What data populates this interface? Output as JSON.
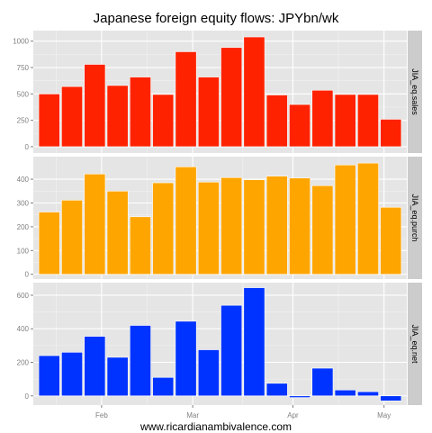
{
  "chart_data": {
    "type": "bar",
    "title": "Japanese foreign equity flows: JPYbn/wk",
    "caption": "www.ricardianambivalence.com",
    "x_tick_labels": [
      "Feb",
      "Mar",
      "Apr",
      "May"
    ],
    "x_tick_positions": [
      3.3,
      7.3,
      11.7,
      15.7
    ],
    "bar_count": 16,
    "grid": true,
    "panels": [
      {
        "name": "JIA_eq.sales",
        "color": "#ff2200",
        "ylim": [
          -60,
          1100
        ],
        "yticks": [
          0,
          250,
          500,
          750,
          1000
        ],
        "values": [
          500,
          570,
          780,
          580,
          660,
          495,
          900,
          660,
          940,
          1040,
          490,
          400,
          535,
          495,
          495,
          260
        ]
      },
      {
        "name": "JIA_eq.purch",
        "color": "#ffa500",
        "ylim": [
          -20,
          495
        ],
        "yticks": [
          0,
          100,
          200,
          300,
          400
        ],
        "values": [
          262,
          312,
          422,
          350,
          242,
          385,
          452,
          388,
          407,
          398,
          413,
          405,
          373,
          460,
          468,
          282
        ]
      },
      {
        "name": "JIA_eq.net",
        "color": "#0033ff",
        "ylim": [
          -55,
          675
        ],
        "yticks": [
          0,
          200,
          400,
          600
        ],
        "values": [
          240,
          260,
          355,
          230,
          420,
          110,
          445,
          275,
          540,
          645,
          75,
          -10,
          165,
          35,
          25,
          -30
        ]
      }
    ]
  }
}
